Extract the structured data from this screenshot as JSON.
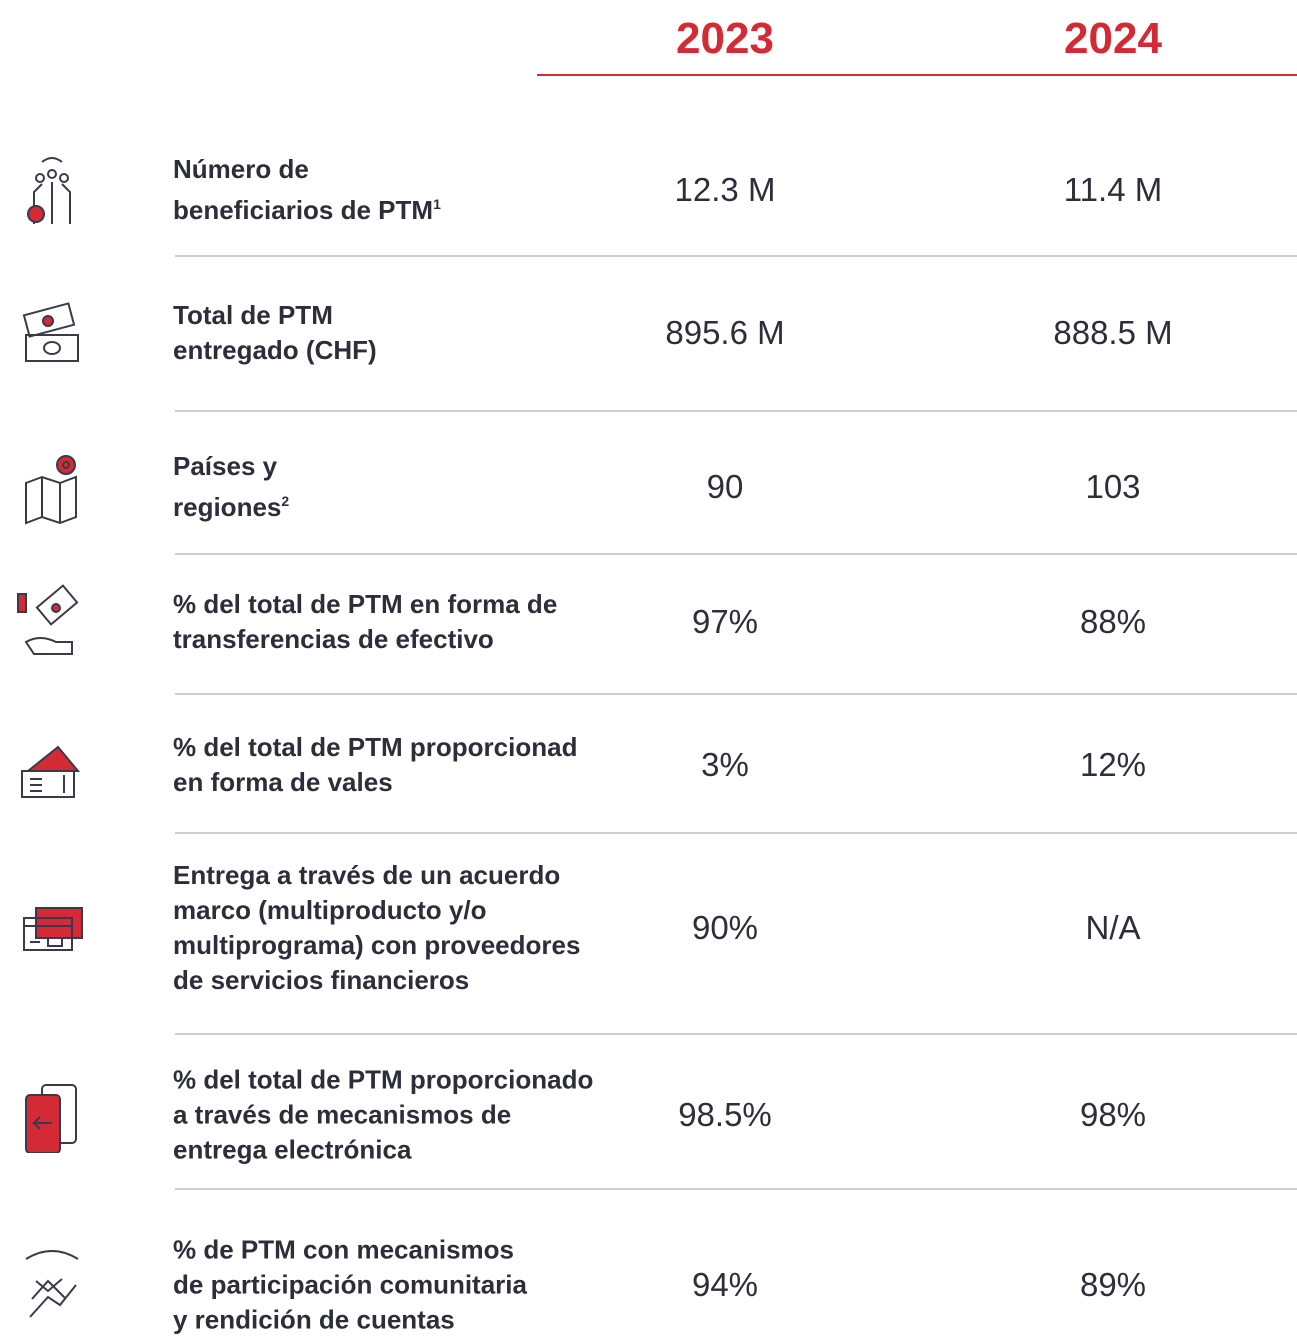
{
  "header": {
    "years": [
      "2023",
      "2024"
    ]
  },
  "rows": [
    {
      "label": [
        "Número de",
        "beneficiarios de PTM"
      ],
      "note": "1",
      "values": [
        "12.3 M",
        "11.4 M"
      ]
    },
    {
      "label": [
        "Total de PTM",
        "entregado (CHF)"
      ],
      "values": [
        "895.6 M",
        "888.5 M"
      ]
    },
    {
      "label": [
        "Países y",
        "regiones"
      ],
      "note": "2",
      "values": [
        "90",
        "103"
      ]
    },
    {
      "label": [
        "% del total de PTM en forma de",
        "transferencias de efectivo"
      ],
      "values": [
        "97%",
        "88%"
      ]
    },
    {
      "label": [
        "% del total de PTM proporcionad",
        "en forma de vales"
      ],
      "values": [
        "3%",
        "12%"
      ]
    },
    {
      "label": [
        "Entrega a través de un acuerdo",
        "marco (multiproducto y/o",
        "multiprograma) con proveedores",
        "de servicios financieros"
      ],
      "values": [
        "90%",
        "N/A"
      ]
    },
    {
      "label": [
        "% del total de PTM proporcionado",
        "a través de mecanismos de",
        "entrega electrónica"
      ],
      "values": [
        "98.5%",
        "98%"
      ]
    },
    {
      "label": [
        "% de PTM con mecanismos",
        "de participación comunitaria",
        "y rendición de cuentas"
      ],
      "values": [
        "94%",
        "89%"
      ]
    }
  ]
}
